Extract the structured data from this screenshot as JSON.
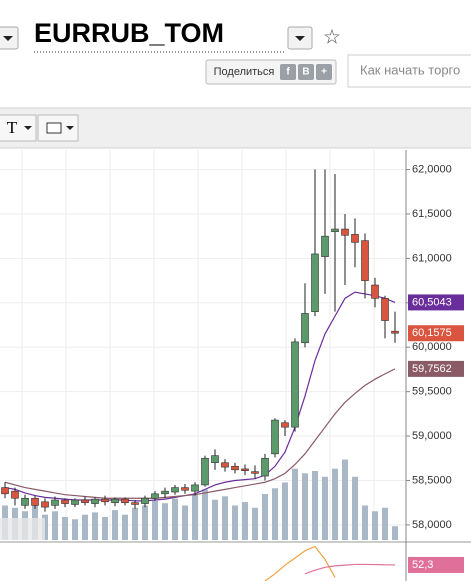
{
  "ui": {
    "share": "Поделиться",
    "share_buttons": [
      "f",
      "B",
      "+"
    ],
    "search_placeholder": "Как начать торго",
    "text_tool": "T"
  },
  "chart_data": {
    "type": "candlestick",
    "title": "EURRUB_TOM",
    "open": [
      58.42,
      58.38,
      58.22,
      58.3,
      58.26,
      58.22,
      58.28,
      58.23,
      58.28,
      58.24,
      58.29,
      58.25,
      58.29,
      58.25,
      58.24,
      58.3,
      58.35,
      58.37,
      58.42,
      58.38,
      58.45,
      58.7,
      58.7,
      58.66,
      58.63,
      58.6,
      58.55,
      58.8,
      59.15,
      59.1,
      60.05,
      60.4,
      61.02,
      61.3,
      61.33,
      61.27,
      61.2,
      60.7,
      60.55,
      60.18
    ],
    "high": [
      58.48,
      58.42,
      58.34,
      58.33,
      58.3,
      58.32,
      58.3,
      58.3,
      58.32,
      58.31,
      58.33,
      58.31,
      58.31,
      58.28,
      58.33,
      58.38,
      58.42,
      58.45,
      58.46,
      58.48,
      58.78,
      58.85,
      58.74,
      58.7,
      58.68,
      58.67,
      58.8,
      59.2,
      59.18,
      60.1,
      60.72,
      62.0,
      62.0,
      61.95,
      61.5,
      61.45,
      61.28,
      60.78,
      60.58,
      60.4
    ],
    "low": [
      58.3,
      58.22,
      58.18,
      58.18,
      58.15,
      58.18,
      58.2,
      58.2,
      58.22,
      58.2,
      58.22,
      58.21,
      58.22,
      58.18,
      58.2,
      58.27,
      58.3,
      58.34,
      58.35,
      58.33,
      58.43,
      58.62,
      58.6,
      58.58,
      58.56,
      58.52,
      58.5,
      58.76,
      59.0,
      59.05,
      60.0,
      60.35,
      60.6,
      60.4,
      60.7,
      60.9,
      60.55,
      60.45,
      60.1,
      60.05
    ],
    "close": [
      58.35,
      58.3,
      58.3,
      58.22,
      58.2,
      58.28,
      58.24,
      58.28,
      58.25,
      58.29,
      58.26,
      58.29,
      58.25,
      58.23,
      58.3,
      58.35,
      58.38,
      58.42,
      58.39,
      58.45,
      58.75,
      58.78,
      58.65,
      58.62,
      58.61,
      58.58,
      58.75,
      59.18,
      59.1,
      60.06,
      60.38,
      61.05,
      61.25,
      61.33,
      61.26,
      61.18,
      60.75,
      60.55,
      60.3,
      60.1575
    ],
    "close_label": "60,1575",
    "up_color": "#5a9a6b",
    "down_color": "#d9553f",
    "volume": [
      30,
      28,
      25,
      30,
      22,
      25,
      20,
      18,
      22,
      24,
      20,
      26,
      22,
      28,
      30,
      34,
      32,
      36,
      30,
      40,
      44,
      35,
      38,
      30,
      33,
      28,
      40,
      45,
      50,
      62,
      58,
      60,
      55,
      62,
      70,
      55,
      30,
      25,
      28,
      12
    ],
    "volume_color": "#a9b8c6",
    "volume_lim": [
      0,
      100
    ],
    "lines": [
      {
        "color": "#6a2d9c",
        "value_label": "60,5043",
        "values": [
          58.42,
          58.4,
          58.36,
          58.33,
          58.31,
          58.3,
          58.29,
          58.28,
          58.28,
          58.28,
          58.28,
          58.28,
          58.28,
          58.27,
          58.27,
          58.28,
          58.29,
          58.31,
          58.33,
          58.35,
          58.4,
          58.45,
          58.48,
          58.5,
          58.51,
          58.52,
          58.56,
          58.66,
          58.82,
          59.1,
          59.45,
          59.85,
          60.15,
          60.35,
          60.55,
          60.62,
          60.6,
          60.58,
          60.55,
          60.5043
        ]
      },
      {
        "color": "#8a5a66",
        "value_label": "59,7562",
        "values": [
          58.48,
          58.45,
          58.42,
          58.4,
          58.38,
          58.36,
          58.34,
          58.33,
          58.32,
          58.31,
          58.3,
          58.3,
          58.3,
          58.3,
          58.3,
          58.3,
          58.31,
          58.32,
          58.33,
          58.34,
          58.36,
          58.38,
          58.4,
          58.42,
          58.44,
          58.46,
          58.48,
          58.52,
          58.58,
          58.68,
          58.8,
          58.95,
          59.1,
          59.25,
          59.38,
          59.48,
          59.57,
          59.64,
          59.7,
          59.7562
        ]
      }
    ],
    "ylim": [
      57.83,
      62.22
    ],
    "yticks": [
      {
        "value": 58,
        "label": "58,0000"
      },
      {
        "value": 58.5,
        "label": "58,5000"
      },
      {
        "value": 59,
        "label": "59,0000"
      },
      {
        "value": 59.5,
        "label": "59,5000"
      },
      {
        "value": 60,
        "label": "60,0000"
      },
      {
        "value": 60.5,
        "label": "60,5000"
      },
      {
        "value": 61,
        "label": "61,0000"
      },
      {
        "value": 61.5,
        "label": "61,5000"
      },
      {
        "value": 62,
        "label": "62,0000"
      }
    ],
    "grid": true,
    "indicator": {
      "ylim": [
        30,
        80
      ],
      "value_label": "52,3",
      "lines": [
        {
          "color": "#f0a040",
          "values": [
            null,
            null,
            null,
            null,
            null,
            null,
            null,
            null,
            null,
            null,
            null,
            null,
            null,
            null,
            null,
            null,
            null,
            null,
            null,
            null,
            null,
            null,
            null,
            null,
            null,
            null,
            30,
            40,
            52,
            62,
            72,
            78,
            60,
            35,
            null,
            null,
            null,
            null,
            null,
            null
          ]
        },
        {
          "color": "#e0709a",
          "values": [
            null,
            null,
            null,
            null,
            null,
            null,
            null,
            null,
            null,
            null,
            null,
            null,
            null,
            null,
            null,
            null,
            null,
            null,
            null,
            null,
            null,
            null,
            null,
            null,
            null,
            null,
            null,
            null,
            null,
            null,
            40,
            45,
            49,
            51,
            52,
            53,
            53,
            52.8,
            52.5,
            52.3
          ]
        }
      ]
    }
  }
}
